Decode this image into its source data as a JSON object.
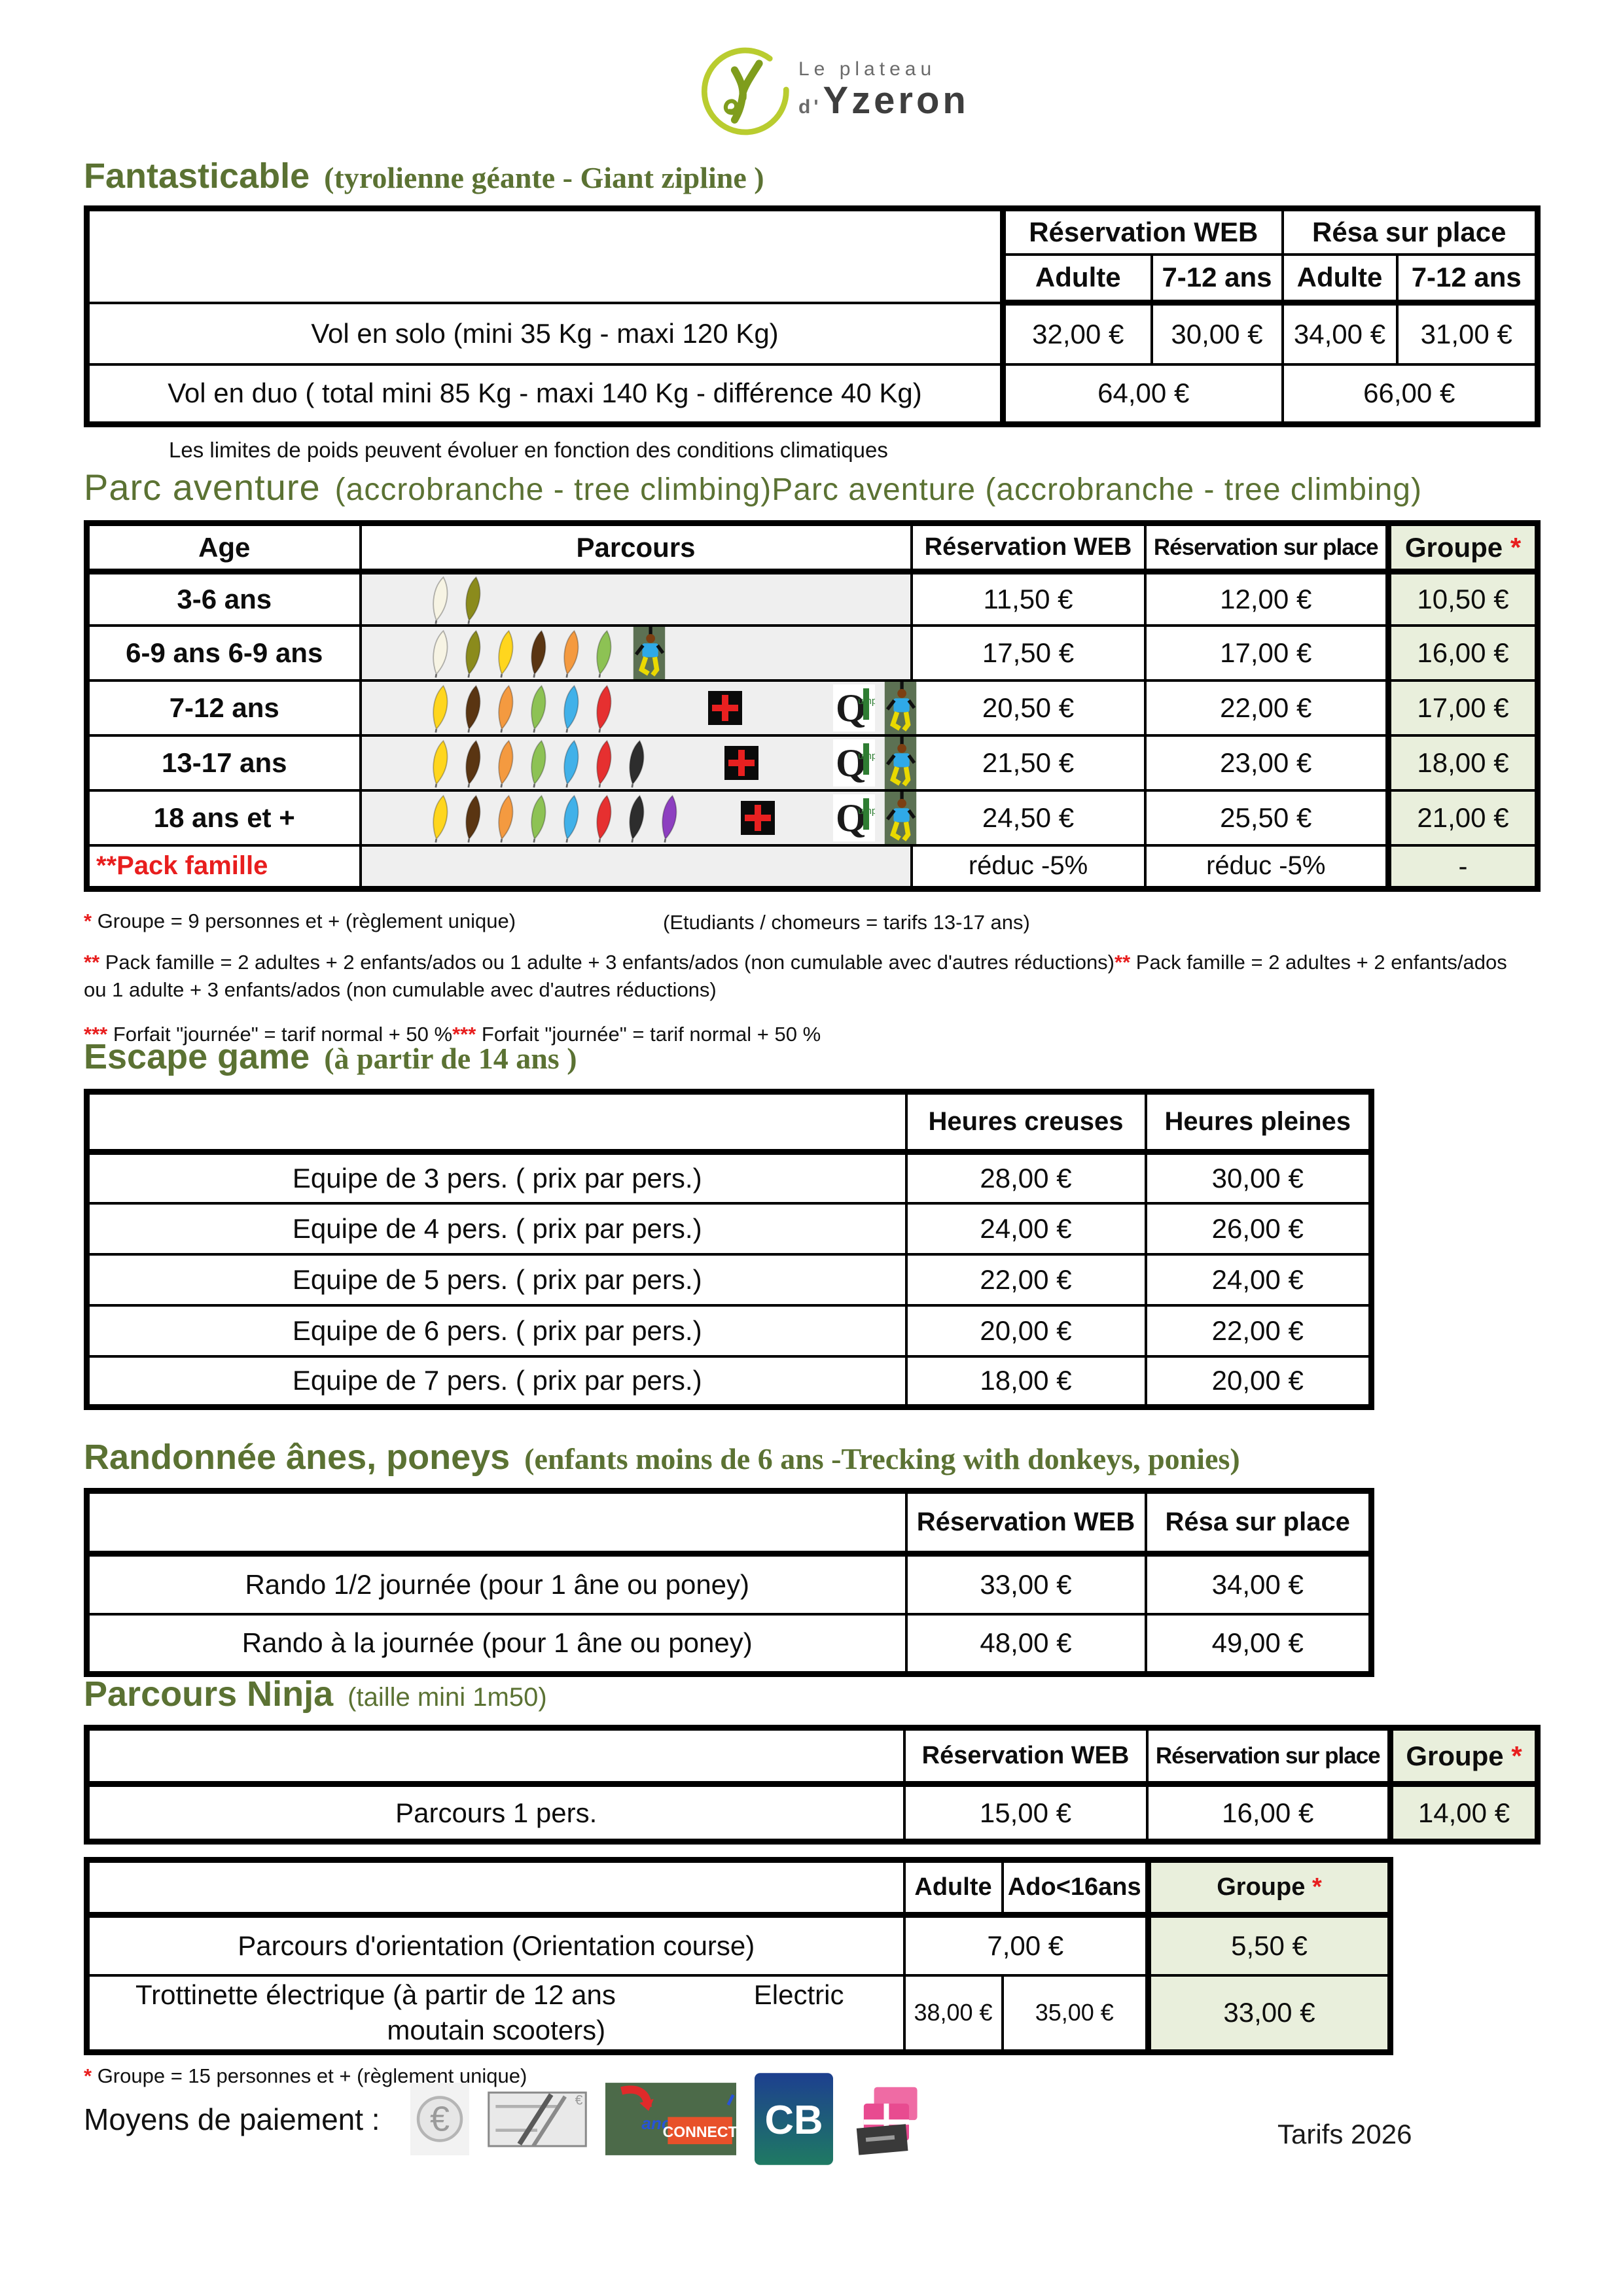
{
  "colors": {
    "section_green": "#5b7233",
    "groupe_bg": "#e9efdc",
    "parcours_bg": "#efefef",
    "accent_red": "#e81e1e"
  },
  "leaf_colors": {
    "white": "#f7f4e4",
    "olive": "#8b8b1c",
    "yellow": "#ffd61e",
    "brown": "#5a3512",
    "orange": "#f49a40",
    "green": "#8dc254",
    "blue": "#41b1e9",
    "red": "#e63030",
    "black": "#2d2d2d",
    "purple": "#8d3fc0"
  },
  "logo": {
    "top": "Le plateau",
    "d": "d'",
    "name": "Yzeron"
  },
  "fantasticable": {
    "title": "Fantasticable",
    "subtitle": "(tyrolienne géante - Giant zipline )",
    "group_headers": [
      "Réservation WEB",
      "Résa  sur place"
    ],
    "sub_headers": [
      "Adulte",
      "7-12 ans",
      "Adulte",
      "7-12 ans"
    ],
    "solo": {
      "label": "Vol en solo (mini 35 Kg - maxi 120 Kg)",
      "prices": [
        "32,00 €",
        "30,00 €",
        "34,00 €",
        "31,00 €"
      ]
    },
    "duo": {
      "label": "Vol en duo ( total mini 85 Kg  - maxi 140 Kg - différence  40 Kg)",
      "web": "64,00 €",
      "place": "66,00 €"
    },
    "note": "Les limites de poids peuvent évoluer en fonction des conditions climatiques"
  },
  "parc": {
    "title": "Parc aventure",
    "subtitle": "(accrobranche - tree climbing)Parc aventure  (accrobranche - tree climbing)",
    "headers": {
      "age": "Age",
      "parcours": "Parcours",
      "web": "Réservation WEB",
      "place": "Réservation sur place",
      "groupe": "Groupe",
      "star": "*"
    },
    "rows": [
      {
        "age": "3-6 ans",
        "leaves": [
          "white",
          "olive"
        ],
        "icons": [],
        "web": "11,50 €",
        "place": "12,00 €",
        "groupe": "10,50 €"
      },
      {
        "age": "6-9 ans 6-9 ans",
        "leaves": [
          "white",
          "olive",
          "yellow",
          "brown",
          "orange",
          "green"
        ],
        "icons": [
          "climber"
        ],
        "web": "17,50 €",
        "place": "17,00 €",
        "groupe": "16,00 €"
      },
      {
        "age": "7-12 ans",
        "leaves": [
          "yellow",
          "brown",
          "orange",
          "green",
          "blue",
          "red"
        ],
        "icons": [
          "push",
          "cross",
          "push",
          "qjump",
          "climber"
        ],
        "web": "20,50 €",
        "place": "22,00 €",
        "groupe": "17,00 €"
      },
      {
        "age": "13-17 ans",
        "leaves": [
          "yellow",
          "brown",
          "orange",
          "green",
          "blue",
          "red",
          "black"
        ],
        "icons": [
          "push",
          "cross",
          "push",
          "qjump",
          "climber"
        ],
        "web": "21,50 €",
        "place": "23,00 €",
        "groupe": "18,00 €"
      },
      {
        "age": "18 ans et +",
        "leaves": [
          "yellow",
          "brown",
          "orange",
          "green",
          "blue",
          "red",
          "black",
          "purple"
        ],
        "icons": [
          "push",
          "cross",
          "push",
          "qjump",
          "climber"
        ],
        "web": "24,50 €",
        "place": "25,50 €",
        "groupe": "21,00 €"
      },
      {
        "age": "**Pack famille",
        "leaves": [],
        "icons": [],
        "web": "réduc -5%",
        "place": "réduc -5%",
        "groupe": "-"
      }
    ],
    "fn1_star": "*",
    "fn1": " Groupe = 9 personnes et +    (règlement unique)",
    "fn1_right": "(Etudiants / chomeurs = tarifs 13-17 ans)",
    "fn2_star": "**",
    "fn2a": " Pack famille = 2 adultes + 2 enfants/ados  ou  1 adulte + 3 enfants/ados (non cumulable avec d'autres réductions)",
    "fn2b": " Pack famille = 2 adultes + 2 enfants/ados  ou  1 adulte + 3 enfants/ados (non cumulable avec d'autres réductions)",
    "fn3_star": "***",
    "fn3a": " Forfait \"journée\" = tarif normal + 50 %",
    "fn3b": " Forfait \"journée\" = tarif normal + 50 %"
  },
  "escape": {
    "title": "Escape game",
    "subtitle": "(à partir de 14 ans )",
    "headers": [
      "Heures creuses",
      "Heures pleines"
    ],
    "rows": [
      {
        "label": "Equipe de 3 pers. ( prix par pers.)",
        "creuses": "28,00 €",
        "pleines": "30,00 €"
      },
      {
        "label": "Equipe de 4 pers.  ( prix par pers.)",
        "creuses": "24,00 €",
        "pleines": "26,00 €"
      },
      {
        "label": "Equipe de 5 pers.  ( prix par pers.)",
        "creuses": "22,00 €",
        "pleines": "24,00 €"
      },
      {
        "label": "Equipe de 6 pers.  ( prix par pers.)",
        "creuses": "20,00 €",
        "pleines": "22,00 €"
      },
      {
        "label": "Equipe de 7 pers.  ( prix par pers.)",
        "creuses": "18,00 €",
        "pleines": "20,00 €"
      }
    ]
  },
  "rando": {
    "title": "Randonnée ânes, poneys",
    "subtitle": "(enfants moins de 6 ans -Trecking with donkeys, ponies)",
    "headers": [
      "Réservation WEB",
      "Résa  sur place"
    ],
    "rows": [
      {
        "label": "Rando  1/2 journée (pour 1 âne  ou poney)",
        "web": "33,00 €",
        "place": "34,00 €"
      },
      {
        "label": "Rando à la journée (pour 1 âne  ou poney)",
        "web": "48,00 €",
        "place": "49,00 €"
      }
    ]
  },
  "ninja": {
    "title": "Parcours Ninja",
    "subtitle": "(taille mini 1m50)",
    "headers": {
      "web": "Réservation WEB",
      "place": "Réservation sur place",
      "groupe": "Groupe",
      "star": "*"
    },
    "row": {
      "label": "Parcours 1 pers.",
      "web": "15,00 €",
      "place": "16,00 €",
      "groupe": "14,00 €"
    }
  },
  "orientation": {
    "headers": {
      "adulte": "Adulte",
      "ado": "Ado<16ans",
      "groupe": "Groupe",
      "star": "*"
    },
    "row1": {
      "label": "Parcours d'orientation (Orientation course)",
      "price": "7,00 €",
      "groupe": "5,50 €"
    },
    "row2": {
      "label_l1": "Trottinette électrique (à partir de 12 ans",
      "label_r1": "Electric",
      "label_l2": "moutain scooters)",
      "adulte": "38,00 €",
      "ado": "35,00 €",
      "groupe": "33,00 €"
    },
    "fn_star": "*",
    "fn": " Groupe = 15 personnes et +  (règlement unique)"
  },
  "payment": {
    "label": "Moyens de paiement :",
    "euro": "€",
    "ancv": "ancv",
    "connect": "CONNECT",
    "cb": "CB"
  },
  "footer": {
    "tarifs": "Tarifs 2026"
  }
}
